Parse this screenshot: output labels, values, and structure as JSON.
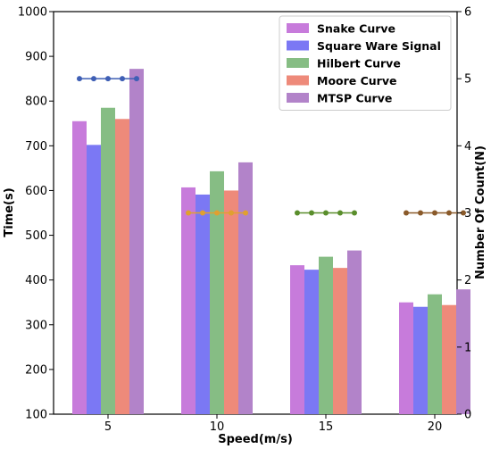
{
  "chart_data": {
    "type": "bar",
    "xlabel": "Speed(m/s)",
    "ylabel": "Time(s)",
    "y2label": "Number Of Count(N)",
    "categories": [
      "5",
      "10",
      "15",
      "20"
    ],
    "ylim": [
      100,
      1000
    ],
    "yticks": [
      100,
      200,
      300,
      400,
      500,
      600,
      700,
      800,
      900,
      1000
    ],
    "y2lim": [
      0,
      6
    ],
    "y2ticks": [
      0,
      1,
      2,
      3,
      4,
      5,
      6
    ],
    "grid": false,
    "legend_position": "top-right",
    "series": [
      {
        "name": "Snake Curve",
        "color": "#c77bdb",
        "values": [
          755,
          607,
          433,
          350
        ]
      },
      {
        "name": "Square Ware Signal",
        "color": "#7b78f4",
        "values": [
          702,
          591,
          423,
          340
        ]
      },
      {
        "name": "Hilbert Curve",
        "color": "#86bd84",
        "values": [
          785,
          643,
          452,
          368
        ]
      },
      {
        "name": "Moore Curve",
        "color": "#ee8a7a",
        "values": [
          760,
          600,
          427,
          344
        ]
      },
      {
        "name": "MTSP Curve",
        "color": "#b283c9",
        "values": [
          872,
          663,
          466,
          379
        ]
      }
    ],
    "count_series": [
      {
        "category": "5",
        "value": 5,
        "color": "#3f5fb5",
        "points": 5
      },
      {
        "category": "10",
        "value": 3,
        "color": "#e0a030",
        "points": 5
      },
      {
        "category": "15",
        "value": 3,
        "color": "#5a8e2c",
        "points": 5
      },
      {
        "category": "20",
        "value": 3,
        "color": "#8a5a2a",
        "points": 5
      }
    ]
  }
}
